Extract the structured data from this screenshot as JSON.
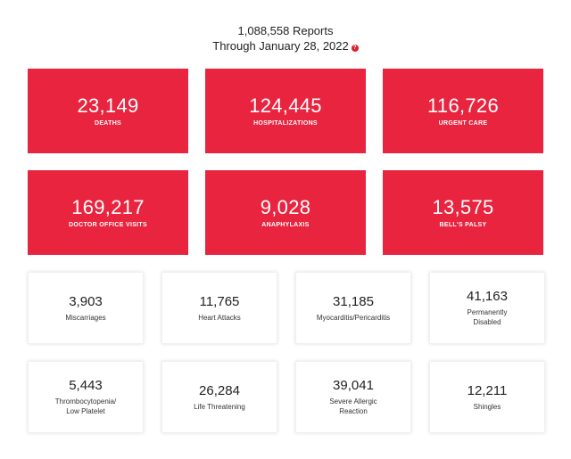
{
  "header": {
    "reports": "1,088,558 Reports",
    "through": "Through January 28, 2022",
    "info_icon": "?"
  },
  "red_stats": [
    {
      "value": "23,149",
      "label": "DEATHS"
    },
    {
      "value": "124,445",
      "label": "HOSPITALIZATIONS"
    },
    {
      "value": "116,726",
      "label": "URGENT CARE"
    },
    {
      "value": "169,217",
      "label": "DOCTOR OFFICE VISITS"
    },
    {
      "value": "9,028",
      "label": "ANAPHYLAXIS"
    },
    {
      "value": "13,575",
      "label": "BELL'S PALSY"
    }
  ],
  "white_stats": [
    {
      "value": "3,903",
      "label": "Miscarriages"
    },
    {
      "value": "11,765",
      "label": "Heart Attacks"
    },
    {
      "value": "31,185",
      "label": "Myocarditis/Pericarditis"
    },
    {
      "value": "41,163",
      "label": "Permanently\nDisabled"
    },
    {
      "value": "5,443",
      "label": "Thrombocytopenia/\nLow Platelet"
    },
    {
      "value": "26,284",
      "label": "Life Threatening"
    },
    {
      "value": "39,041",
      "label": "Severe Allergic\nReaction"
    },
    {
      "value": "12,211",
      "label": "Shingles"
    }
  ],
  "colors": {
    "accent": "#e8243f",
    "info_icon": "#d91f2b"
  }
}
